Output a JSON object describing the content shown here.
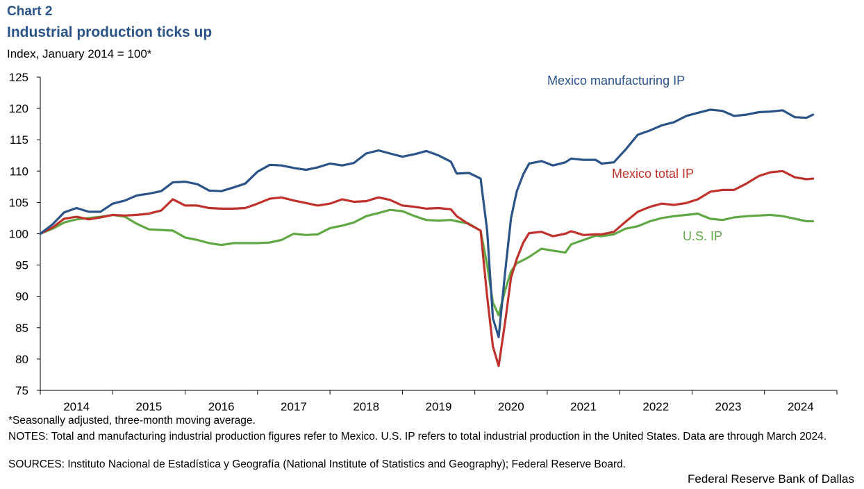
{
  "header": {
    "chart_label": "Chart 2",
    "title": "Industrial production ticks up",
    "y_unit": "Index, January 2014 = 100*"
  },
  "footer": {
    "note_seasonal": "*Seasonally adjusted, three-month moving average.",
    "notes": "NOTES: Total and manufacturing industrial production figures refer to Mexico. U.S. IP refers to total industrial production in the United States. Data are through March 2024.",
    "sources": "SOURCES: Instituto Nacional de Estadística y Geografía (National Institute of Statistics and Geography); Federal Reserve Board.",
    "credit": "Federal Reserve Bank of Dallas"
  },
  "chart_data": {
    "type": "line",
    "title": "Industrial production ticks up",
    "ylabel": "Index, January 2014 = 100*",
    "xlabel": "",
    "ylim": [
      75,
      125
    ],
    "yticks": [
      75,
      80,
      85,
      90,
      95,
      100,
      105,
      110,
      115,
      120,
      125
    ],
    "x_range": [
      2014.0,
      2025.0
    ],
    "x_tick_labels": [
      "2014",
      "2015",
      "2016",
      "2017",
      "2018",
      "2019",
      "2020",
      "2021",
      "2022",
      "2023",
      "2024"
    ],
    "grid": false,
    "series": [
      {
        "name": "Mexico manufacturing IP",
        "label": "Mexico manufacturing IP",
        "color": "#2a5388",
        "points": [
          [
            2014.0,
            100
          ],
          [
            2014.17,
            101.5
          ],
          [
            2014.33,
            103.4
          ],
          [
            2014.5,
            104.1
          ],
          [
            2014.67,
            103.5
          ],
          [
            2014.83,
            103.5
          ],
          [
            2015.0,
            104.8
          ],
          [
            2015.17,
            105.3
          ],
          [
            2015.33,
            106.1
          ],
          [
            2015.5,
            106.4
          ],
          [
            2015.67,
            106.8
          ],
          [
            2015.83,
            108.2
          ],
          [
            2016.0,
            108.3
          ],
          [
            2016.17,
            107.9
          ],
          [
            2016.33,
            106.9
          ],
          [
            2016.5,
            106.8
          ],
          [
            2016.67,
            107.4
          ],
          [
            2016.83,
            108.0
          ],
          [
            2017.0,
            109.9
          ],
          [
            2017.17,
            111.0
          ],
          [
            2017.33,
            110.9
          ],
          [
            2017.5,
            110.5
          ],
          [
            2017.67,
            110.2
          ],
          [
            2017.83,
            110.6
          ],
          [
            2018.0,
            111.2
          ],
          [
            2018.17,
            110.9
          ],
          [
            2018.33,
            111.3
          ],
          [
            2018.5,
            112.8
          ],
          [
            2018.67,
            113.3
          ],
          [
            2018.83,
            112.8
          ],
          [
            2019.0,
            112.3
          ],
          [
            2019.17,
            112.7
          ],
          [
            2019.33,
            113.2
          ],
          [
            2019.5,
            112.5
          ],
          [
            2019.67,
            111.5
          ],
          [
            2019.75,
            109.6
          ],
          [
            2019.92,
            109.7
          ],
          [
            2020.08,
            108.8
          ],
          [
            2020.17,
            100.5
          ],
          [
            2020.25,
            86.5
          ],
          [
            2020.33,
            83.5
          ],
          [
            2020.42,
            94.0
          ],
          [
            2020.5,
            102.5
          ],
          [
            2020.58,
            106.8
          ],
          [
            2020.67,
            109.5
          ],
          [
            2020.75,
            111.2
          ],
          [
            2020.92,
            111.6
          ],
          [
            2021.08,
            110.9
          ],
          [
            2021.25,
            111.4
          ],
          [
            2021.33,
            112.0
          ],
          [
            2021.5,
            111.8
          ],
          [
            2021.67,
            111.8
          ],
          [
            2021.75,
            111.2
          ],
          [
            2021.92,
            111.4
          ],
          [
            2022.08,
            113.4
          ],
          [
            2022.25,
            115.8
          ],
          [
            2022.42,
            116.5
          ],
          [
            2022.58,
            117.3
          ],
          [
            2022.75,
            117.8
          ],
          [
            2022.92,
            118.8
          ],
          [
            2023.08,
            119.3
          ],
          [
            2023.25,
            119.8
          ],
          [
            2023.42,
            119.6
          ],
          [
            2023.58,
            118.8
          ],
          [
            2023.75,
            119.0
          ],
          [
            2023.92,
            119.4
          ],
          [
            2024.08,
            119.5
          ],
          [
            2024.25,
            119.7
          ],
          [
            2024.42,
            118.6
          ],
          [
            2024.58,
            118.5
          ],
          [
            2024.67,
            119.0
          ]
        ]
      },
      {
        "name": "Mexico total IP",
        "label": "Mexico total IP",
        "color": "#c0312b",
        "points": [
          [
            2014.0,
            100
          ],
          [
            2014.17,
            101.0
          ],
          [
            2014.33,
            102.4
          ],
          [
            2014.5,
            102.7
          ],
          [
            2014.67,
            102.3
          ],
          [
            2014.83,
            102.6
          ],
          [
            2015.0,
            103.0
          ],
          [
            2015.17,
            102.9
          ],
          [
            2015.33,
            103.0
          ],
          [
            2015.5,
            103.2
          ],
          [
            2015.67,
            103.7
          ],
          [
            2015.83,
            105.5
          ],
          [
            2016.0,
            104.5
          ],
          [
            2016.17,
            104.5
          ],
          [
            2016.33,
            104.1
          ],
          [
            2016.5,
            104.0
          ],
          [
            2016.67,
            104.0
          ],
          [
            2016.83,
            104.1
          ],
          [
            2017.0,
            104.8
          ],
          [
            2017.17,
            105.6
          ],
          [
            2017.33,
            105.8
          ],
          [
            2017.5,
            105.3
          ],
          [
            2017.67,
            104.9
          ],
          [
            2017.83,
            104.5
          ],
          [
            2018.0,
            104.8
          ],
          [
            2018.17,
            105.5
          ],
          [
            2018.33,
            105.1
          ],
          [
            2018.5,
            105.2
          ],
          [
            2018.67,
            105.8
          ],
          [
            2018.83,
            105.4
          ],
          [
            2019.0,
            104.5
          ],
          [
            2019.17,
            104.3
          ],
          [
            2019.33,
            104.0
          ],
          [
            2019.5,
            104.1
          ],
          [
            2019.67,
            103.9
          ],
          [
            2019.75,
            102.8
          ],
          [
            2019.92,
            101.5
          ],
          [
            2020.08,
            100.5
          ],
          [
            2020.17,
            90.0
          ],
          [
            2020.25,
            82.0
          ],
          [
            2020.33,
            78.9
          ],
          [
            2020.42,
            86.0
          ],
          [
            2020.5,
            93.0
          ],
          [
            2020.58,
            96.0
          ],
          [
            2020.67,
            98.6
          ],
          [
            2020.75,
            100.1
          ],
          [
            2020.92,
            100.3
          ],
          [
            2021.08,
            99.6
          ],
          [
            2021.25,
            100.0
          ],
          [
            2021.33,
            100.4
          ],
          [
            2021.5,
            99.8
          ],
          [
            2021.67,
            99.9
          ],
          [
            2021.75,
            99.9
          ],
          [
            2021.92,
            100.3
          ],
          [
            2022.08,
            101.9
          ],
          [
            2022.25,
            103.5
          ],
          [
            2022.42,
            104.3
          ],
          [
            2022.58,
            104.8
          ],
          [
            2022.75,
            104.6
          ],
          [
            2022.92,
            104.9
          ],
          [
            2023.08,
            105.5
          ],
          [
            2023.25,
            106.7
          ],
          [
            2023.42,
            107.0
          ],
          [
            2023.58,
            107.0
          ],
          [
            2023.75,
            108.0
          ],
          [
            2023.92,
            109.2
          ],
          [
            2024.08,
            109.8
          ],
          [
            2024.25,
            110.0
          ],
          [
            2024.42,
            109.0
          ],
          [
            2024.58,
            108.7
          ],
          [
            2024.67,
            108.8
          ]
        ]
      },
      {
        "name": "U.S. IP",
        "label": "U.S. IP",
        "color": "#5fa843",
        "points": [
          [
            2014.0,
            100
          ],
          [
            2014.17,
            100.8
          ],
          [
            2014.33,
            101.8
          ],
          [
            2014.5,
            102.3
          ],
          [
            2014.67,
            102.5
          ],
          [
            2014.83,
            102.7
          ],
          [
            2015.0,
            103.0
          ],
          [
            2015.17,
            102.7
          ],
          [
            2015.33,
            101.6
          ],
          [
            2015.5,
            100.7
          ],
          [
            2015.67,
            100.6
          ],
          [
            2015.83,
            100.5
          ],
          [
            2016.0,
            99.4
          ],
          [
            2016.17,
            99.0
          ],
          [
            2016.33,
            98.5
          ],
          [
            2016.5,
            98.2
          ],
          [
            2016.67,
            98.5
          ],
          [
            2016.83,
            98.5
          ],
          [
            2017.0,
            98.5
          ],
          [
            2017.17,
            98.6
          ],
          [
            2017.33,
            99.0
          ],
          [
            2017.5,
            100.0
          ],
          [
            2017.67,
            99.8
          ],
          [
            2017.83,
            99.9
          ],
          [
            2018.0,
            100.9
          ],
          [
            2018.17,
            101.3
          ],
          [
            2018.33,
            101.8
          ],
          [
            2018.5,
            102.8
          ],
          [
            2018.67,
            103.3
          ],
          [
            2018.83,
            103.8
          ],
          [
            2019.0,
            103.6
          ],
          [
            2019.17,
            102.8
          ],
          [
            2019.33,
            102.2
          ],
          [
            2019.5,
            102.1
          ],
          [
            2019.67,
            102.2
          ],
          [
            2019.75,
            102.0
          ],
          [
            2019.92,
            101.6
          ],
          [
            2020.08,
            100.5
          ],
          [
            2020.17,
            95.0
          ],
          [
            2020.25,
            89.0
          ],
          [
            2020.33,
            87.0
          ],
          [
            2020.42,
            91.0
          ],
          [
            2020.5,
            94.0
          ],
          [
            2020.58,
            95.3
          ],
          [
            2020.67,
            95.8
          ],
          [
            2020.75,
            96.3
          ],
          [
            2020.92,
            97.6
          ],
          [
            2021.08,
            97.3
          ],
          [
            2021.25,
            97.0
          ],
          [
            2021.33,
            98.3
          ],
          [
            2021.5,
            99.0
          ],
          [
            2021.67,
            99.7
          ],
          [
            2021.75,
            99.6
          ],
          [
            2021.92,
            99.9
          ],
          [
            2022.08,
            100.8
          ],
          [
            2022.25,
            101.2
          ],
          [
            2022.42,
            102.0
          ],
          [
            2022.58,
            102.5
          ],
          [
            2022.75,
            102.8
          ],
          [
            2022.92,
            103.0
          ],
          [
            2023.08,
            103.2
          ],
          [
            2023.25,
            102.4
          ],
          [
            2023.42,
            102.2
          ],
          [
            2023.58,
            102.6
          ],
          [
            2023.75,
            102.8
          ],
          [
            2023.92,
            102.9
          ],
          [
            2024.08,
            103.0
          ],
          [
            2024.25,
            102.8
          ],
          [
            2024.42,
            102.4
          ],
          [
            2024.58,
            102.0
          ],
          [
            2024.67,
            102.0
          ]
        ]
      }
    ]
  }
}
